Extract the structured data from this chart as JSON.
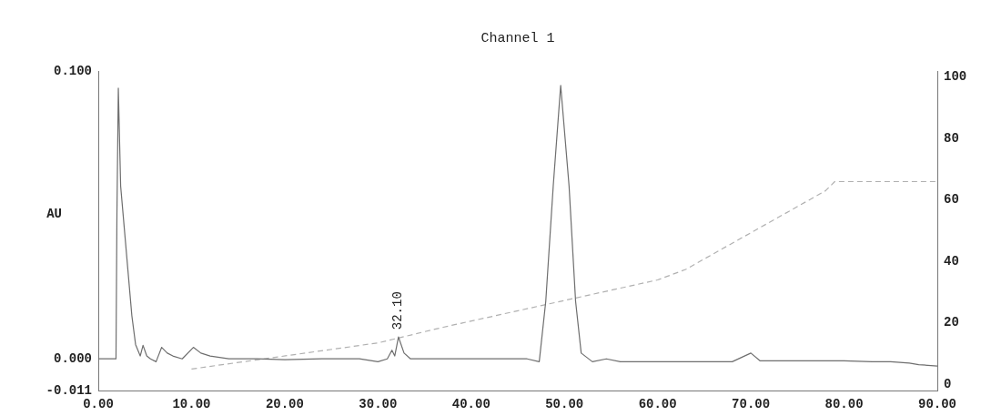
{
  "chart_data": {
    "type": "line",
    "title": "Channel 1",
    "ylabel": "AU",
    "legend": false,
    "grid": false,
    "marker": "none",
    "xlim": [
      0,
      90
    ],
    "xticks": [
      {
        "value": 0,
        "label": "0.00"
      },
      {
        "value": 10,
        "label": "10.00"
      },
      {
        "value": 20,
        "label": "20.00"
      },
      {
        "value": 30,
        "label": "30.00"
      },
      {
        "value": 40,
        "label": "40.00"
      },
      {
        "value": 50,
        "label": "50.00"
      },
      {
        "value": 60,
        "label": "60.00"
      },
      {
        "value": 70,
        "label": "70.00"
      },
      {
        "value": 80,
        "label": "80.00"
      },
      {
        "value": 90,
        "label": "90.00"
      }
    ],
    "ylim": [
      -0.011,
      0.1
    ],
    "yticks": [
      {
        "value": -0.011,
        "label": "-0.011"
      },
      {
        "value": 0,
        "label": "0.000"
      },
      {
        "value": 0.1,
        "label": "0.100"
      }
    ],
    "y2lim": [
      -2,
      102
    ],
    "y2ticks": [
      0,
      20,
      40,
      60,
      80,
      100
    ],
    "annotations": [
      {
        "text": "32.10",
        "x": 32.1,
        "y": 0.0076
      }
    ],
    "series": [
      {
        "color": "#6e6e6e",
        "line_style": "solid",
        "x": [
          0,
          1.5,
          1.9,
          2.0,
          2.15,
          2.4,
          2.8,
          3.2,
          3.6,
          4.0,
          4.5,
          4.8,
          5.2,
          5.6,
          6.2,
          6.8,
          7.4,
          8.0,
          9.0,
          10.2,
          11.0,
          12.0,
          14.0,
          17.0,
          20.0,
          24.0,
          28.0,
          30.0,
          31.0,
          31.5,
          31.8,
          32.2,
          32.8,
          33.5,
          36,
          40,
          43,
          46,
          47.3,
          48.0,
          48.8,
          49.6,
          50.5,
          51.2,
          51.8,
          53.0,
          54.5,
          56.0,
          60,
          64,
          68,
          70,
          71,
          75,
          80,
          83,
          85,
          87,
          88,
          90
        ],
        "values": [
          0,
          0,
          0,
          0.05,
          0.094,
          0.06,
          0.045,
          0.03,
          0.015,
          0.005,
          0.001,
          0.0047,
          0.001,
          0,
          -0.001,
          0.004,
          0.002,
          0.001,
          0,
          0.004,
          0.002,
          0.001,
          0,
          0,
          -0.0003,
          0,
          0,
          -0.001,
          0,
          0.003,
          0.001,
          0.0076,
          0.002,
          0,
          0,
          0,
          0,
          0,
          -0.001,
          0.02,
          0.06,
          0.095,
          0.06,
          0.02,
          0.002,
          -0.001,
          0,
          -0.001,
          -0.001,
          -0.001,
          -0.001,
          0.002,
          -0.0007,
          -0.0007,
          -0.0007,
          -0.001,
          -0.001,
          -0.0015,
          -0.002,
          -0.0025
        ]
      },
      {
        "color": "#b0b0b0",
        "line_style": "dashed",
        "axis": "y2",
        "x": [
          10,
          30,
          37,
          60,
          63,
          78,
          79,
          90
        ],
        "values": [
          5,
          13.5,
          18.6,
          34,
          37.4,
          63,
          66,
          66
        ]
      }
    ]
  }
}
